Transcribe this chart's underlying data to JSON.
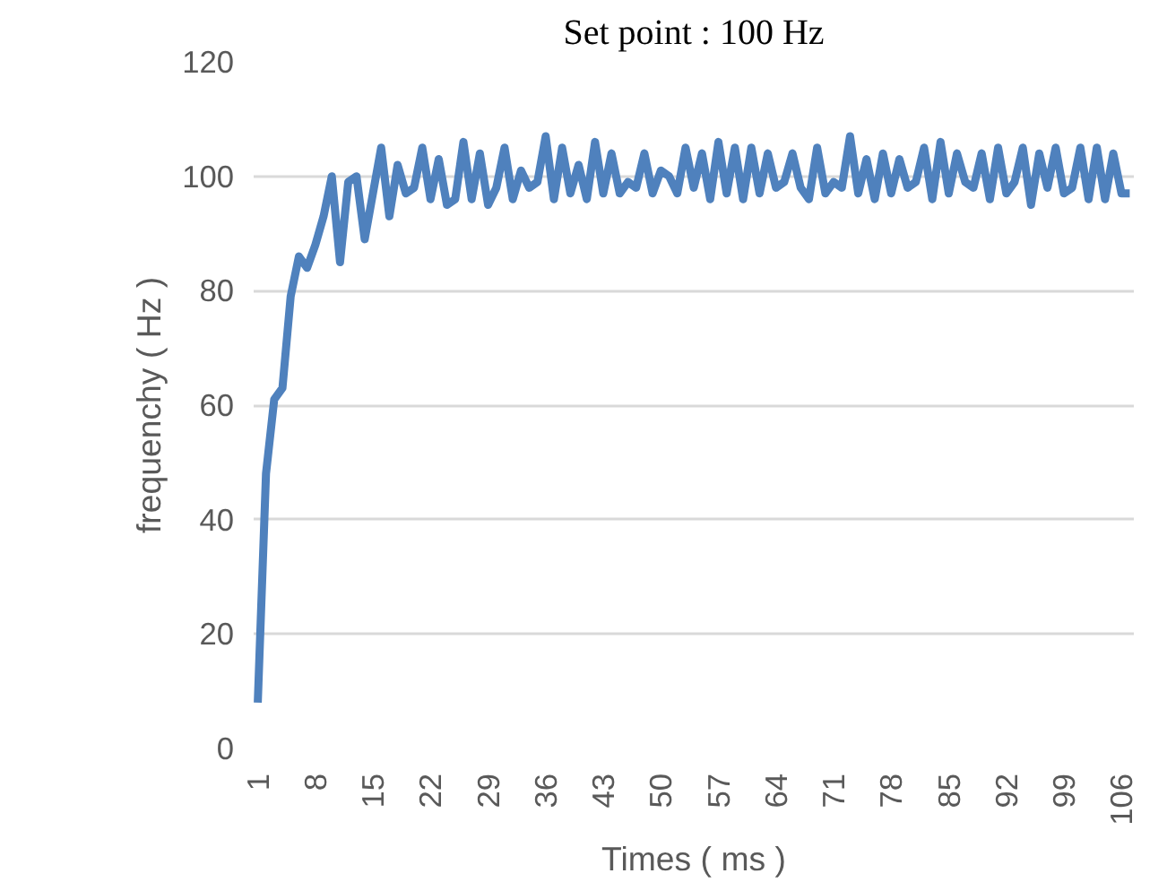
{
  "chart_data": {
    "type": "line",
    "title": "Set point : 100 Hz",
    "xlabel": "Times ( ms )",
    "ylabel": "frequenchy ( Hz )",
    "categories": [
      "1",
      null,
      null,
      null,
      null,
      null,
      null,
      "8",
      null,
      null,
      null,
      null,
      null,
      null,
      "15",
      null,
      null,
      null,
      null,
      null,
      null,
      "22",
      null,
      null,
      null,
      null,
      null,
      null,
      "29",
      null,
      null,
      null,
      null,
      null,
      null,
      "36",
      null,
      null,
      null,
      null,
      null,
      null,
      "43",
      null,
      null,
      null,
      null,
      null,
      null,
      "50",
      null,
      null,
      null,
      null,
      null,
      null,
      "57",
      null,
      null,
      null,
      null,
      null,
      null,
      "64",
      null,
      null,
      null,
      null,
      null,
      null,
      "71",
      null,
      null,
      null,
      null,
      null,
      null,
      "78",
      null,
      null,
      null,
      null,
      null,
      null,
      "85",
      null,
      null,
      null,
      null,
      null,
      null,
      "92",
      null,
      null,
      null,
      null,
      null,
      null,
      "99",
      null,
      null,
      null,
      null,
      null,
      null,
      "106",
      null
    ],
    "series": [
      {
        "color": "#4f81bd",
        "values": [
          8,
          48,
          61,
          63,
          79,
          86,
          84,
          88,
          93,
          100,
          85,
          99,
          100,
          89,
          97,
          105,
          93,
          102,
          97,
          98,
          105,
          96,
          103,
          95,
          96,
          106,
          96,
          104,
          95,
          98,
          105,
          96,
          101,
          98,
          99,
          107,
          96,
          105,
          97,
          102,
          96,
          106,
          97,
          104,
          97,
          99,
          98,
          104,
          97,
          101,
          100,
          97,
          105,
          98,
          104,
          96,
          106,
          97,
          105,
          96,
          105,
          97,
          104,
          98,
          99,
          104,
          98,
          96,
          105,
          97,
          99,
          98,
          107,
          97,
          103,
          96,
          104,
          97,
          103,
          98,
          99,
          105,
          96,
          106,
          97,
          104,
          99,
          98,
          104,
          96,
          105,
          97,
          99,
          105,
          95,
          104,
          98,
          105,
          97,
          98,
          105,
          96,
          105,
          96,
          104,
          97,
          97
        ]
      }
    ],
    "ylim": [
      0,
      120
    ],
    "yticks": [
      0,
      20,
      40,
      60,
      80,
      100,
      120
    ],
    "grid": "y",
    "marker": "none",
    "line_style": "solid"
  }
}
